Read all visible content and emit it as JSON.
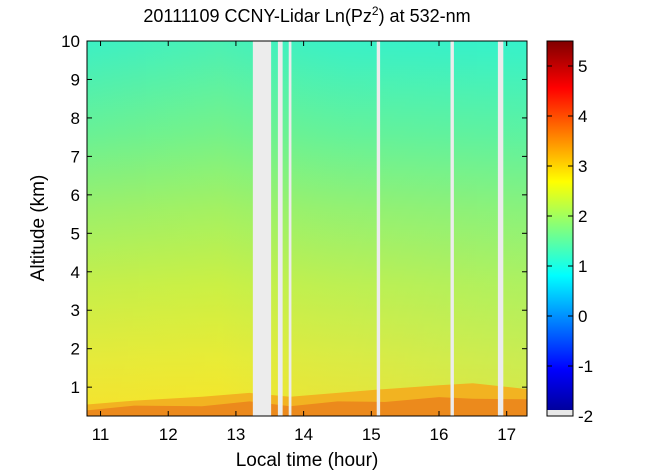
{
  "chart_data": {
    "type": "heatmap",
    "title_main": "20111109 CCNY-Lidar Ln(Pz",
    "title_sup": "2",
    "title_end": ") at 532-nm",
    "xlabel": "Local time (hour)",
    "ylabel": "Altitude (km)",
    "xlim": [
      10.8,
      17.3
    ],
    "ylim": [
      0.25,
      10
    ],
    "xticks": [
      "11",
      "12",
      "13",
      "14",
      "15",
      "16",
      "17"
    ],
    "yticks": [
      "1",
      "2",
      "3",
      "4",
      "5",
      "6",
      "7",
      "8",
      "9",
      "10"
    ],
    "colorbar": {
      "clim": [
        -2,
        5.5
      ],
      "ticks": [
        "-2",
        "-1",
        "0",
        "1",
        "2",
        "3",
        "4",
        "5"
      ],
      "colormap": "jet",
      "bottom_color": "#e8e8e8"
    },
    "data_gaps_hours": [
      [
        13.25,
        13.52
      ],
      [
        13.62,
        13.69
      ],
      [
        13.78,
        13.82
      ],
      [
        15.08,
        15.13
      ],
      [
        16.17,
        16.22
      ],
      [
        16.87,
        16.95
      ]
    ],
    "gap_color": "#ececec",
    "boundary_layer_top_km": [
      [
        10.8,
        0.55
      ],
      [
        11.5,
        0.65
      ],
      [
        12.5,
        0.75
      ],
      [
        13.2,
        0.85
      ],
      [
        13.8,
        0.75
      ],
      [
        14.5,
        0.85
      ],
      [
        15.2,
        0.95
      ],
      [
        16.0,
        1.05
      ],
      [
        16.5,
        1.1
      ],
      [
        17.3,
        0.95
      ]
    ],
    "value_profile": [
      [
        0.3,
        4.2
      ],
      [
        0.5,
        3.8
      ],
      [
        0.9,
        3.1
      ],
      [
        1.5,
        2.75
      ],
      [
        2.5,
        2.5
      ],
      [
        4.0,
        2.25
      ],
      [
        6.0,
        2.0
      ],
      [
        8.0,
        1.75
      ],
      [
        10.0,
        1.5
      ]
    ]
  }
}
